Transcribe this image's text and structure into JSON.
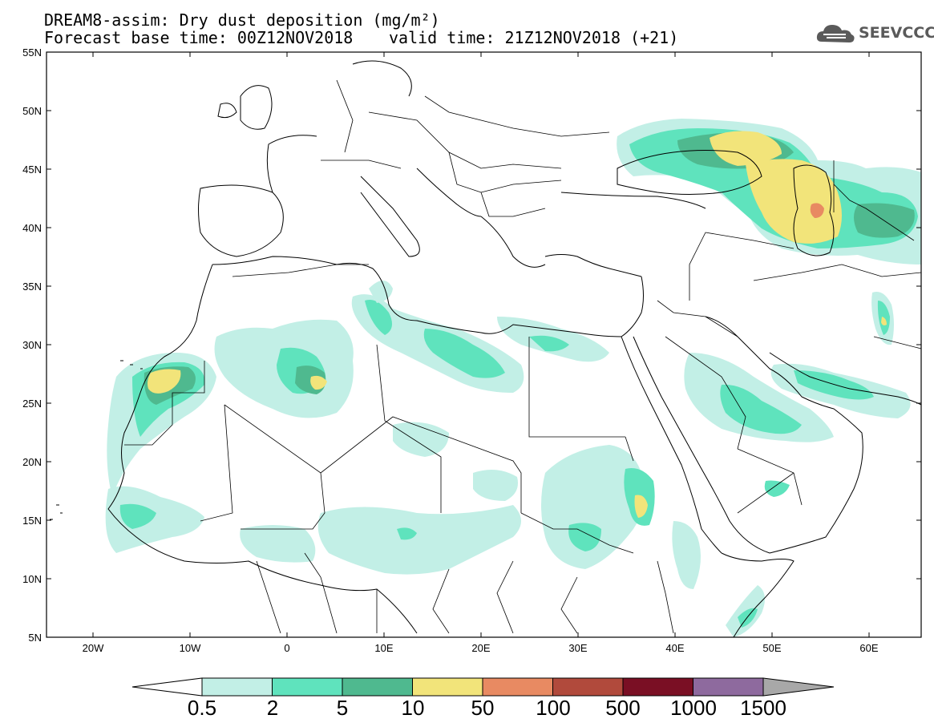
{
  "header": {
    "title_line1": "DREAM8-assim: Dry dust deposition (mg/m²)",
    "title_line2": "Forecast base time: 00Z12NOV2018",
    "valid_time": "valid time: 21Z12NOV2018 (+21)",
    "logo_text": "SEEVCCC"
  },
  "map": {
    "projection": "lat-lon",
    "lon_range": [
      -25,
      65
    ],
    "lat_range": [
      5,
      55
    ],
    "lat_ticks": [
      "55N",
      "50N",
      "45N",
      "40N",
      "35N",
      "30N",
      "25N",
      "20N",
      "15N",
      "10N",
      "5N"
    ],
    "lon_ticks": [
      "20W",
      "10W",
      "0",
      "10E",
      "20E",
      "30E",
      "40E",
      "50E",
      "60E"
    ]
  },
  "colorbar": {
    "labels": [
      "0.5",
      "2",
      "5",
      "10",
      "50",
      "100",
      "500",
      "1000",
      "1500"
    ],
    "colors": [
      "#c2efe6",
      "#5fe3bd",
      "#4fb98f",
      "#f2e47a",
      "#e88a62",
      "#b14a3c",
      "#7a0f24",
      "#8e6a9e",
      "#a8a8a8"
    ]
  }
}
